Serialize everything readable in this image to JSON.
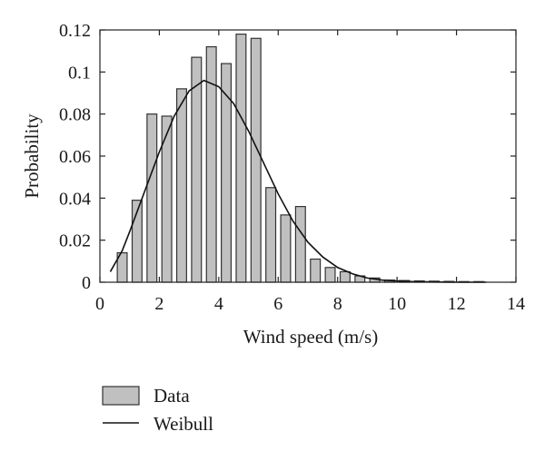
{
  "chart_data": {
    "type": "bar",
    "xlabel": "Wind speed (m/s)",
    "ylabel": "Probability",
    "xlim": [
      0,
      14
    ],
    "ylim": [
      0,
      0.12
    ],
    "xticks": [
      "0",
      "2",
      "4",
      "6",
      "8",
      "10",
      "12",
      "14"
    ],
    "yticks": [
      "0",
      "0.02",
      "0.04",
      "0.06",
      "0.08",
      "0.1",
      "0.12"
    ],
    "grid": false,
    "legend_position": "below",
    "bar_width": 0.33,
    "series": [
      {
        "name": "Data",
        "kind": "bar",
        "color": "#c0c0c0",
        "x": [
          0.75,
          1.25,
          1.75,
          2.25,
          2.75,
          3.25,
          3.75,
          4.25,
          4.75,
          5.25,
          5.75,
          6.25,
          6.75,
          7.25,
          7.75,
          8.25,
          8.75,
          9.25,
          9.75,
          10.25,
          10.75,
          11.25,
          11.75,
          12.25,
          12.75
        ],
        "values": [
          0.014,
          0.039,
          0.08,
          0.079,
          0.092,
          0.107,
          0.112,
          0.104,
          0.118,
          0.116,
          0.045,
          0.032,
          0.036,
          0.011,
          0.007,
          0.005,
          0.003,
          0.002,
          0.001,
          0.0008,
          0.0006,
          0.0005,
          0.0004,
          0.0003,
          0.0003
        ]
      },
      {
        "name": "Weibull",
        "kind": "line",
        "color": "#111111",
        "x": [
          0.35,
          0.75,
          1.0,
          1.5,
          2.0,
          2.5,
          3.0,
          3.5,
          4.0,
          4.5,
          5.0,
          5.5,
          6.0,
          6.5,
          7.0,
          7.5,
          8.0,
          8.5,
          9.0,
          9.5,
          10.0,
          10.5,
          11.0,
          11.5,
          12.0,
          13.0
        ],
        "values": [
          0.005,
          0.015,
          0.024,
          0.043,
          0.062,
          0.079,
          0.091,
          0.096,
          0.093,
          0.085,
          0.072,
          0.057,
          0.042,
          0.029,
          0.019,
          0.012,
          0.007,
          0.004,
          0.002,
          0.001,
          0.0006,
          0.0003,
          0.0002,
          0.0001,
          0.0,
          0.0
        ]
      }
    ]
  }
}
